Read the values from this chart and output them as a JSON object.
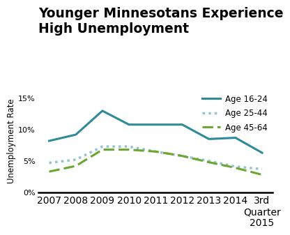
{
  "title": "Younger Minnesotans Experience\nHigh Unemployment",
  "ylabel": "Unemployment Rate",
  "x_labels": [
    "2007",
    "2008",
    "2009",
    "2010",
    "2011",
    "2012",
    "2013",
    "2014",
    "3rd\nQuarter\n2015"
  ],
  "x_values": [
    0,
    1,
    2,
    3,
    4,
    5,
    6,
    7,
    8
  ],
  "series": [
    {
      "label": "Age 16-24",
      "color": "#2e8b9a",
      "linestyle": "solid",
      "linewidth": 2.2,
      "values": [
        8.2,
        9.2,
        13.0,
        10.8,
        10.8,
        10.8,
        8.5,
        8.7,
        6.3
      ]
    },
    {
      "label": "Age 25-44",
      "color": "#92c5cc",
      "linestyle": "dotted",
      "linewidth": 2.5,
      "values": [
        4.7,
        5.2,
        7.3,
        7.3,
        6.5,
        5.8,
        5.0,
        4.1,
        3.7
      ]
    },
    {
      "label": "Age 45-64",
      "color": "#6aa632",
      "linestyle": "dashed",
      "linewidth": 2.2,
      "values": [
        3.3,
        4.2,
        6.8,
        6.8,
        6.5,
        5.8,
        4.8,
        3.9,
        2.8
      ]
    }
  ],
  "ylim": [
    0,
    16.5
  ],
  "yticks": [
    0,
    5,
    10,
    15
  ],
  "ytick_labels": [
    "0%",
    "5%",
    "10%",
    "15%"
  ],
  "background_color": "#ffffff",
  "title_fontsize": 13.5,
  "title_fontweight": "bold",
  "axis_label_fontsize": 8.5,
  "tick_fontsize": 8,
  "legend_fontsize": 8.5
}
